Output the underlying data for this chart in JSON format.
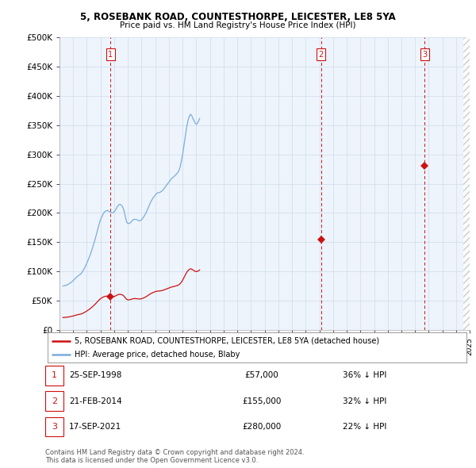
{
  "title_line1": "5, ROSEBANK ROAD, COUNTESTHORPE, LEICESTER, LE8 5YA",
  "title_line2": "Price paid vs. HM Land Registry's House Price Index (HPI)",
  "ylim": [
    0,
    500000
  ],
  "xlim_start": 1995.25,
  "xlim_end": 2025.0,
  "yticks": [
    0,
    50000,
    100000,
    150000,
    200000,
    250000,
    300000,
    350000,
    400000,
    450000,
    500000
  ],
  "ytick_labels": [
    "£0",
    "£50K",
    "£100K",
    "£150K",
    "£200K",
    "£250K",
    "£300K",
    "£350K",
    "£400K",
    "£450K",
    "£500K"
  ],
  "hpi_color": "#7aaddc",
  "price_color": "#cc1111",
  "vline_color": "#cc1111",
  "grid_color": "#ccddee",
  "bg_color": "#eef4fb",
  "plot_bg": "#eef4fb",
  "transactions": [
    {
      "date_num": 1998.73,
      "price": 57000,
      "label": "1"
    },
    {
      "date_num": 2014.13,
      "price": 155000,
      "label": "2"
    },
    {
      "date_num": 2021.71,
      "price": 280000,
      "label": "3"
    }
  ],
  "legend_line1": "5, ROSEBANK ROAD, COUNTESTHORPE, LEICESTER, LE8 5YA (detached house)",
  "legend_line2": "HPI: Average price, detached house, Blaby",
  "table_rows": [
    {
      "num": "1",
      "date": "25-SEP-1998",
      "price": "£57,000",
      "pct": "36% ↓ HPI"
    },
    {
      "num": "2",
      "date": "21-FEB-2014",
      "price": "£155,000",
      "pct": "32% ↓ HPI"
    },
    {
      "num": "3",
      "date": "17-SEP-2021",
      "price": "£280,000",
      "pct": "22% ↓ HPI"
    }
  ],
  "footer": "Contains HM Land Registry data © Crown copyright and database right 2024.\nThis data is licensed under the Open Government Licence v3.0.",
  "hpi_index": [
    100.0,
    100.5,
    101.2,
    102.0,
    103.1,
    104.5,
    106.2,
    108.3,
    110.0,
    112.5,
    115.0,
    117.8,
    120.2,
    122.8,
    124.5,
    126.3,
    128.5,
    132.0,
    136.5,
    141.5,
    146.5,
    152.5,
    158.5,
    165.0,
    171.5,
    179.5,
    187.5,
    196.0,
    204.5,
    214.0,
    224.0,
    233.5,
    243.0,
    251.5,
    257.5,
    262.5,
    267.5,
    270.0,
    271.5,
    272.5,
    271.0,
    269.5,
    268.0,
    267.0,
    267.5,
    269.5,
    272.5,
    277.5,
    282.0,
    285.5,
    286.5,
    285.0,
    282.0,
    276.5,
    267.5,
    255.0,
    246.0,
    242.5,
    242.5,
    244.0,
    246.5,
    249.5,
    252.0,
    252.0,
    252.0,
    251.0,
    249.5,
    248.5,
    249.5,
    251.0,
    254.5,
    258.0,
    262.5,
    267.5,
    273.5,
    279.5,
    285.5,
    291.5,
    296.0,
    300.5,
    304.0,
    307.5,
    310.0,
    312.5,
    312.5,
    313.5,
    315.0,
    317.0,
    319.5,
    323.0,
    326.5,
    330.0,
    333.5,
    337.0,
    340.5,
    344.0,
    346.5,
    348.5,
    351.0,
    353.5,
    356.5,
    359.5,
    364.5,
    373.5,
    385.0,
    399.5,
    417.0,
    434.5,
    452.5,
    468.0,
    479.5,
    487.5,
    491.5,
    488.5,
    482.5,
    477.0,
    471.5,
    468.5,
    471.0,
    476.0,
    482.0
  ],
  "hpi_base_value": 75000,
  "sale1_hpi_idx": 40,
  "sale2_hpi_idx": 76,
  "sale3_hpi_idx": 105
}
